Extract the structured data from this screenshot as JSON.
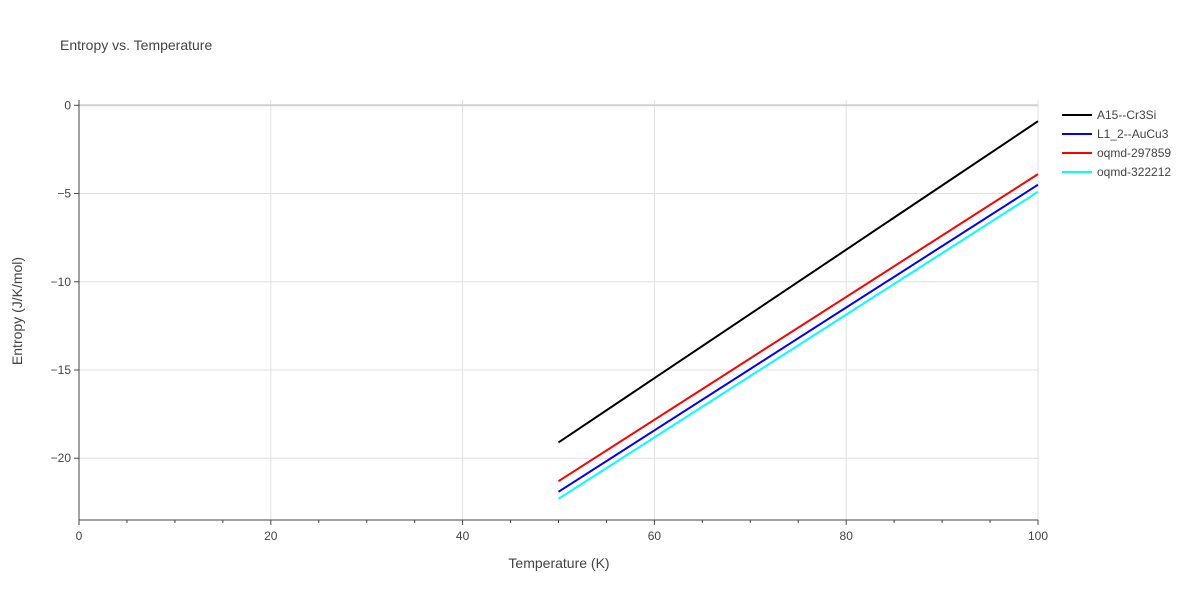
{
  "chart_data": {
    "type": "line",
    "title": "Entropy vs. Temperature",
    "xlabel": "Temperature (K)",
    "ylabel": "Entropy (J/K/mol)",
    "xlim": [
      0,
      100
    ],
    "ylim": [
      -23.5,
      0.3
    ],
    "x_ticks": [
      0,
      20,
      40,
      60,
      80,
      100
    ],
    "y_ticks": [
      0,
      -5,
      -10,
      -15,
      -20
    ],
    "grid": true,
    "legend_position": "top-right",
    "series": [
      {
        "name": "A15--Cr3Si",
        "color": "#000000",
        "x": [
          50,
          100
        ],
        "y": [
          -19.1,
          -0.9
        ]
      },
      {
        "name": "L1_2--AuCu3",
        "color": "#0000ff",
        "x": [
          50,
          100
        ],
        "y": [
          -21.9,
          -4.5
        ]
      },
      {
        "name": "oqmd-297859",
        "color": "#ff0000",
        "x": [
          50,
          100
        ],
        "y": [
          -21.3,
          -3.9
        ]
      },
      {
        "name": "oqmd-322212",
        "color": "#00ffff",
        "x": [
          50,
          100
        ],
        "y": [
          -22.3,
          -4.9
        ]
      }
    ]
  }
}
